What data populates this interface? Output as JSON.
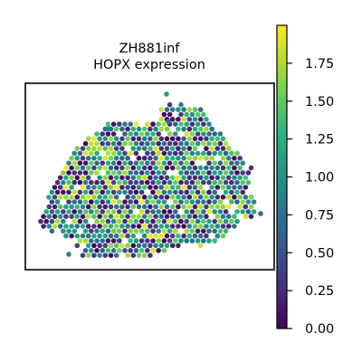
{
  "chart_data": {
    "type": "scatter",
    "title": "ZH881inf",
    "subtitle": "HOPX expression",
    "colormap": "viridis",
    "color_range": [
      0,
      2.0
    ],
    "colorbar_ticks": [
      "0.00",
      "0.25",
      "0.50",
      "0.75",
      "1.00",
      "1.25",
      "1.50",
      "1.75"
    ],
    "axes": {
      "xticks": [],
      "yticks": [],
      "grid": false
    },
    "point_count": 870,
    "tissue_region": {
      "x_range": [
        45,
        285
      ],
      "y_range": [
        105,
        285
      ]
    }
  }
}
